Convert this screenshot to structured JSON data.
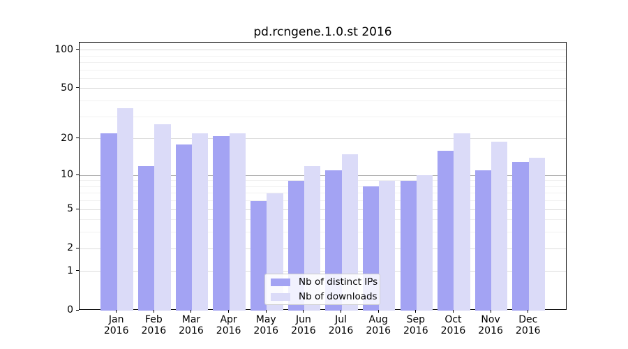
{
  "title": "pd.rcngene.1.0.st 2016",
  "colors": {
    "ips_bar": "#a3a3f3",
    "downloads_bar": "#dbdbf8",
    "grid_minor": "#f0f0f0",
    "grid_major": "#dcdcdc",
    "grid_decade": "#b0b0b0",
    "axis": "#000000",
    "legend_border": "#cccccc"
  },
  "chart_data": {
    "type": "bar",
    "title": "pd.rcngene.1.0.st 2016",
    "categories": [
      "Jan",
      "Feb",
      "Mar",
      "Apr",
      "May",
      "Jun",
      "Jul",
      "Aug",
      "Sep",
      "Oct",
      "Nov",
      "Dec"
    ],
    "category_year": "2016",
    "series": [
      {
        "name": "Nb of distinct IPs",
        "values": [
          22,
          12,
          18,
          21,
          6,
          9,
          11,
          8,
          9,
          16,
          11,
          13
        ]
      },
      {
        "name": "Nb of downloads",
        "values": [
          35,
          26,
          22,
          22,
          7,
          12,
          15,
          9,
          10,
          22,
          19,
          14
        ]
      }
    ],
    "y_scale": "log10(1+v)",
    "y_max": 114.3,
    "y_ticks": [
      0,
      1,
      2,
      5,
      10,
      20,
      50,
      100
    ],
    "minor_gridlines": [
      2,
      3,
      4,
      6,
      7,
      8,
      9,
      20,
      30,
      40,
      60,
      70,
      80,
      90
    ],
    "grid": true,
    "legend_position": "lower center"
  }
}
